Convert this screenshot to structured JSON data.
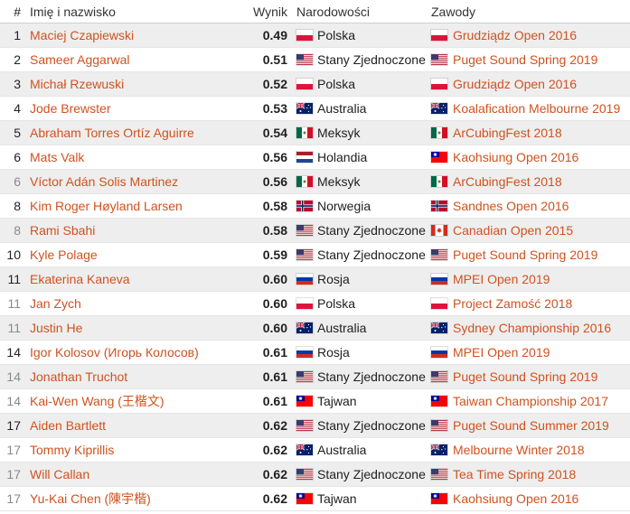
{
  "header": {
    "pos": "#",
    "name": "Imię i nazwisko",
    "result": "Wynik",
    "nationality": "Narodowości",
    "competition": "Zawody"
  },
  "rows": [
    {
      "pos": "1",
      "tie": false,
      "name": "Maciej Czapiewski",
      "result": "0.49",
      "country": "Polska",
      "flag": "pl",
      "comp": "Grudziądz Open 2016",
      "comp_flag": "pl"
    },
    {
      "pos": "2",
      "tie": false,
      "name": "Sameer Aggarwal",
      "result": "0.51",
      "country": "Stany Zjednoczone",
      "flag": "us",
      "comp": "Puget Sound Spring 2019",
      "comp_flag": "us"
    },
    {
      "pos": "3",
      "tie": false,
      "name": "Michał Rzewuski",
      "result": "0.52",
      "country": "Polska",
      "flag": "pl",
      "comp": "Grudziądz Open 2016",
      "comp_flag": "pl"
    },
    {
      "pos": "4",
      "tie": false,
      "name": "Jode Brewster",
      "result": "0.53",
      "country": "Australia",
      "flag": "au",
      "comp": "Koalafication Melbourne 2019",
      "comp_flag": "au"
    },
    {
      "pos": "5",
      "tie": false,
      "name": "Abraham Torres Ortíz Aguirre",
      "result": "0.54",
      "country": "Meksyk",
      "flag": "mx",
      "comp": "ArCubingFest 2018",
      "comp_flag": "mx"
    },
    {
      "pos": "6",
      "tie": false,
      "name": "Mats Valk",
      "result": "0.56",
      "country": "Holandia",
      "flag": "nl",
      "comp": "Kaohsiung Open 2016",
      "comp_flag": "tw"
    },
    {
      "pos": "6",
      "tie": true,
      "name": "Víctor Adán Solis Martinez",
      "result": "0.56",
      "country": "Meksyk",
      "flag": "mx",
      "comp": "ArCubingFest 2018",
      "comp_flag": "mx"
    },
    {
      "pos": "8",
      "tie": false,
      "name": "Kim Roger Høyland Larsen",
      "result": "0.58",
      "country": "Norwegia",
      "flag": "no",
      "comp": "Sandnes Open 2016",
      "comp_flag": "no"
    },
    {
      "pos": "8",
      "tie": true,
      "name": "Rami Sbahi",
      "result": "0.58",
      "country": "Stany Zjednoczone",
      "flag": "us",
      "comp": "Canadian Open 2015",
      "comp_flag": "ca"
    },
    {
      "pos": "10",
      "tie": false,
      "name": "Kyle Polage",
      "result": "0.59",
      "country": "Stany Zjednoczone",
      "flag": "us",
      "comp": "Puget Sound Spring 2019",
      "comp_flag": "us"
    },
    {
      "pos": "11",
      "tie": false,
      "name": "Ekaterina Kaneva",
      "result": "0.60",
      "country": "Rosja",
      "flag": "ru",
      "comp": "MPEI Open 2019",
      "comp_flag": "ru"
    },
    {
      "pos": "11",
      "tie": true,
      "name": "Jan Zych",
      "result": "0.60",
      "country": "Polska",
      "flag": "pl",
      "comp": "Project Zamość 2018",
      "comp_flag": "pl"
    },
    {
      "pos": "11",
      "tie": true,
      "name": "Justin He",
      "result": "0.60",
      "country": "Australia",
      "flag": "au",
      "comp": "Sydney Championship 2016",
      "comp_flag": "au"
    },
    {
      "pos": "14",
      "tie": false,
      "name": "Igor Kolosov (Игорь Колосов)",
      "result": "0.61",
      "country": "Rosja",
      "flag": "ru",
      "comp": "MPEI Open 2019",
      "comp_flag": "ru"
    },
    {
      "pos": "14",
      "tie": true,
      "name": "Jonathan Truchot",
      "result": "0.61",
      "country": "Stany Zjednoczone",
      "flag": "us",
      "comp": "Puget Sound Spring 2019",
      "comp_flag": "us"
    },
    {
      "pos": "14",
      "tie": true,
      "name": "Kai-Wen Wang (王楷文)",
      "result": "0.61",
      "country": "Tajwan",
      "flag": "tw",
      "comp": "Taiwan Championship 2017",
      "comp_flag": "tw"
    },
    {
      "pos": "17",
      "tie": false,
      "name": "Aiden Bartlett",
      "result": "0.62",
      "country": "Stany Zjednoczone",
      "flag": "us",
      "comp": "Puget Sound Summer 2019",
      "comp_flag": "us"
    },
    {
      "pos": "17",
      "tie": true,
      "name": "Tommy Kiprillis",
      "result": "0.62",
      "country": "Australia",
      "flag": "au",
      "comp": "Melbourne Winter 2018",
      "comp_flag": "au"
    },
    {
      "pos": "17",
      "tie": true,
      "name": "Will Callan",
      "result": "0.62",
      "country": "Stany Zjednoczone",
      "flag": "us",
      "comp": "Tea Time Spring 2018",
      "comp_flag": "us"
    },
    {
      "pos": "17",
      "tie": true,
      "name": "Yu-Kai Chen (陳宇楷)",
      "result": "0.62",
      "country": "Tajwan",
      "flag": "tw",
      "comp": "Kaohsiung Open 2016",
      "comp_flag": "tw"
    }
  ],
  "colors": {
    "link": "#d0521f",
    "row_alt": "#eeeeee",
    "tie_pos": "#8a8a8a"
  }
}
